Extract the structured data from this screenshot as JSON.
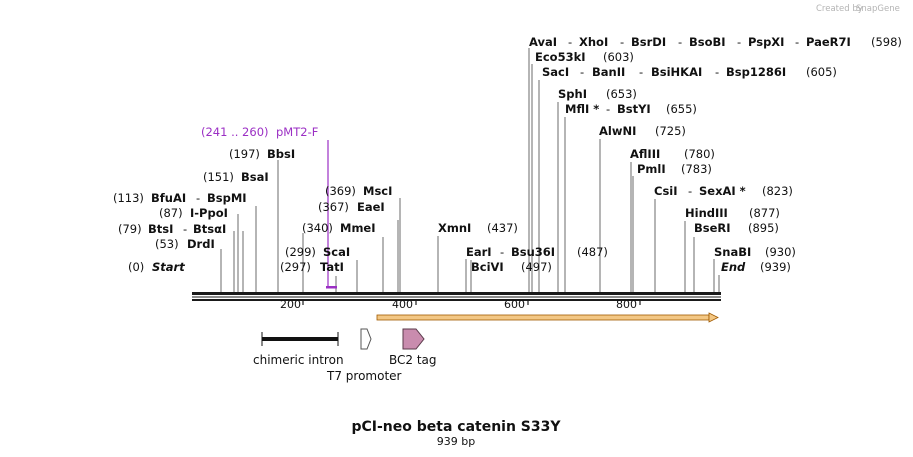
{
  "credit": {
    "prefix": "Created by",
    "brand": "SnapGene"
  },
  "title": "pCI-neo beta catenin S33Y",
  "subtitle": "939 bp",
  "axis": {
    "ticks": [
      "200",
      "400",
      "600",
      "800"
    ]
  },
  "primer": {
    "range": "(241 .. 260)",
    "name": "pMT2-F"
  },
  "features": {
    "intron": "chimeric intron",
    "t7": "T7 promoter",
    "bc2": "BC2 tag"
  },
  "sites": {
    "start": {
      "pos": "(0)",
      "name": "Start"
    },
    "drdi": {
      "pos": "(53)",
      "name": "DrdI"
    },
    "btsi": {
      "pos": "(79)",
      "name": "BtsI",
      "sep": "-",
      "name2": "BtsαI"
    },
    "ippoi": {
      "pos": "(87)",
      "name": "I-PpoI"
    },
    "bfuai": {
      "pos": "(113)",
      "name": "BfuAI",
      "sep": "-",
      "name2": "BspMI"
    },
    "bsai": {
      "pos": "(151)",
      "name": "BsaI"
    },
    "bbsi": {
      "pos": "(197)",
      "name": "BbsI"
    },
    "tati": {
      "pos": "(297)",
      "name": "TatI"
    },
    "scai": {
      "pos": "(299)",
      "name": "ScaI"
    },
    "mmei": {
      "pos": "(340)",
      "name": "MmeI"
    },
    "eaei": {
      "pos": "(367)",
      "name": "EaeI"
    },
    "msci": {
      "pos": "(369)",
      "name": "MscI"
    },
    "xmni": {
      "pos": "(437)",
      "name": "XmnI"
    },
    "bcivi": {
      "pos": "(497)",
      "name": "BciVI"
    },
    "eari": {
      "pos": "(487)",
      "name": "EarI",
      "sep": "-",
      "name2": "Bsu36I"
    },
    "avai": {
      "pos": "(598)",
      "names": [
        "AvaI",
        "XhoI",
        "BsrDI",
        "BsoBI",
        "PspXI",
        "PaeR7I"
      ],
      "sep": "-"
    },
    "eco53ki": {
      "pos": "(603)",
      "name": "Eco53kI"
    },
    "saci": {
      "pos": "(605)",
      "names": [
        "SacI",
        "BanII",
        "BsiHKAI",
        "Bsp1286I"
      ],
      "sep": "-"
    },
    "sphi": {
      "pos": "(653)",
      "name": "SphI"
    },
    "mfli": {
      "pos": "(655)",
      "name": "MflI *",
      "sep": "-",
      "name2": "BstYI"
    },
    "alwni": {
      "pos": "(725)",
      "name": "AlwNI"
    },
    "afliii": {
      "pos": "(780)",
      "name": "AflIII"
    },
    "pmli": {
      "pos": "(783)",
      "name": "PmlI"
    },
    "csii": {
      "pos": "(823)",
      "name": "CsiI",
      "sep": "-",
      "name2": "SexAI *"
    },
    "hindiii": {
      "pos": "(877)",
      "name": "HindIII"
    },
    "bseri": {
      "pos": "(895)",
      "name": "BseRI"
    },
    "snabi": {
      "pos": "(930)",
      "name": "SnaBI"
    },
    "end": {
      "pos": "(939)",
      "name": "End"
    }
  },
  "colors": {
    "backbone": "#1a1a1a",
    "primer": "#9b2fc4",
    "orf_fill": "#f3c784",
    "orf_stroke": "#a15a00",
    "bc2_fill": "#c98cae",
    "tick_line": "#888888"
  }
}
